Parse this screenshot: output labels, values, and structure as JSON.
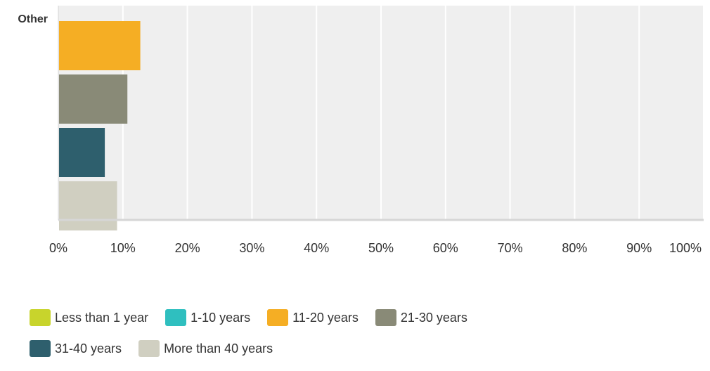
{
  "chart_data": {
    "type": "bar",
    "orientation": "horizontal",
    "categories": [
      "Other"
    ],
    "series": [
      {
        "name": "Less than 1 year",
        "color": "#c8d42c",
        "values": [
          0
        ]
      },
      {
        "name": "1-10 years",
        "color": "#2fbfbf",
        "values": [
          0
        ]
      },
      {
        "name": "11-20 years",
        "color": "#f5ae24",
        "values": [
          12.7
        ]
      },
      {
        "name": "21-30 years",
        "color": "#898a77",
        "values": [
          10.7
        ]
      },
      {
        "name": "31-40 years",
        "color": "#2e5f6d",
        "values": [
          7.2
        ]
      },
      {
        "name": "More than 40 years",
        "color": "#d0cfc1",
        "values": [
          9.1
        ]
      }
    ],
    "x_ticks": [
      "0%",
      "10%",
      "20%",
      "30%",
      "40%",
      "50%",
      "60%",
      "70%",
      "80%",
      "90%",
      "100%"
    ],
    "xlim": [
      0,
      100
    ],
    "grid": true,
    "legend_position": "bottom"
  }
}
